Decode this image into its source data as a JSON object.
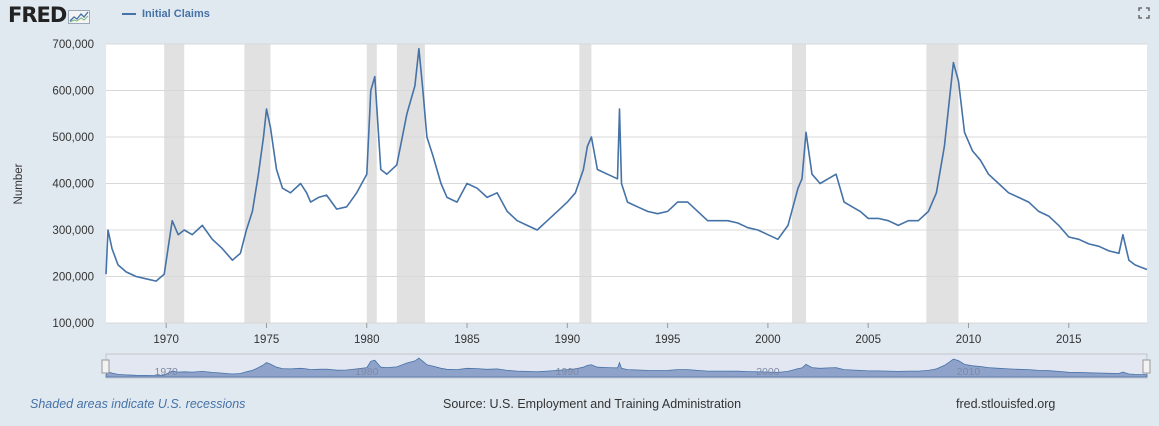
{
  "header": {
    "logo_text": "FRED",
    "legend_label": "Initial Claims"
  },
  "colors": {
    "series": "#4572a7",
    "recession": "#e1e1e1",
    "navigator_fill": "#8fa2c9",
    "grid": "#d8d8d8",
    "background": "#e1e9f0"
  },
  "footer": {
    "recession_note": "Shaded areas indicate U.S. recessions",
    "source": "Source: U.S. Employment and Training Administration",
    "site": "fred.stlouisfed.org"
  },
  "chart_data": {
    "type": "line",
    "title": "",
    "xlabel": "",
    "ylabel": "Number",
    "xlim": [
      1967.0,
      2018.9
    ],
    "ylim": [
      100000,
      700000
    ],
    "yticks": [
      100000,
      200000,
      300000,
      400000,
      500000,
      600000,
      700000
    ],
    "ytick_labels": [
      "100,000",
      "200,000",
      "300,000",
      "400,000",
      "500,000",
      "600,000",
      "700,000"
    ],
    "xticks": [
      1970,
      1975,
      1980,
      1985,
      1990,
      1995,
      2000,
      2005,
      2010,
      2015
    ],
    "xtick_labels": [
      "1970",
      "1975",
      "1980",
      "1985",
      "1990",
      "1995",
      "2000",
      "2005",
      "2010",
      "2015"
    ],
    "grid": true,
    "legend": "top-left",
    "recessions": [
      [
        1969.9,
        1970.9
      ],
      [
        1973.9,
        1975.2
      ],
      [
        1980.0,
        1980.5
      ],
      [
        1981.5,
        1982.9
      ],
      [
        1990.6,
        1991.2
      ],
      [
        2001.2,
        2001.9
      ],
      [
        2007.9,
        2009.5
      ]
    ],
    "navigator_labels": [
      "1970",
      "1980",
      "1990",
      "2000",
      "2010"
    ],
    "series": [
      {
        "name": "Initial Claims",
        "x": [
          1967.0,
          1967.1,
          1967.3,
          1967.6,
          1968.0,
          1968.5,
          1969.0,
          1969.5,
          1969.9,
          1970.3,
          1970.6,
          1970.9,
          1971.3,
          1971.8,
          1972.3,
          1972.8,
          1973.3,
          1973.7,
          1974.0,
          1974.3,
          1974.6,
          1974.85,
          1975.0,
          1975.2,
          1975.5,
          1975.8,
          1976.2,
          1976.7,
          1977.0,
          1977.2,
          1977.6,
          1978.0,
          1978.5,
          1979.0,
          1979.5,
          1980.0,
          1980.2,
          1980.4,
          1980.7,
          1981.0,
          1981.5,
          1982.0,
          1982.4,
          1982.6,
          1982.8,
          1983.0,
          1983.3,
          1983.7,
          1984.0,
          1984.5,
          1985.0,
          1985.5,
          1986.0,
          1986.5,
          1987.0,
          1987.5,
          1988.0,
          1988.5,
          1989.0,
          1989.5,
          1990.0,
          1990.4,
          1990.8,
          1991.0,
          1991.2,
          1991.5,
          1992.0,
          1992.5,
          1992.6,
          1992.7,
          1993.0,
          1993.5,
          1994.0,
          1994.5,
          1995.0,
          1995.5,
          1996.0,
          1996.5,
          1997.0,
          1997.5,
          1998.0,
          1998.5,
          1999.0,
          1999.5,
          2000.0,
          2000.5,
          2001.0,
          2001.5,
          2001.7,
          2001.9,
          2002.2,
          2002.6,
          2003.0,
          2003.4,
          2003.8,
          2004.2,
          2004.6,
          2005.0,
          2005.5,
          2006.0,
          2006.5,
          2007.0,
          2007.5,
          2008.0,
          2008.4,
          2008.8,
          2009.1,
          2009.25,
          2009.5,
          2009.8,
          2010.2,
          2010.6,
          2011.0,
          2011.5,
          2012.0,
          2012.5,
          2013.0,
          2013.5,
          2014.0,
          2014.5,
          2015.0,
          2015.5,
          2016.0,
          2016.5,
          2017.0,
          2017.5,
          2017.7,
          2018.0,
          2018.3,
          2018.6,
          2018.9
        ],
        "values": [
          205000,
          300000,
          260000,
          225000,
          210000,
          200000,
          195000,
          190000,
          205000,
          320000,
          290000,
          300000,
          290000,
          310000,
          280000,
          260000,
          235000,
          250000,
          300000,
          340000,
          420000,
          500000,
          560000,
          520000,
          430000,
          390000,
          380000,
          400000,
          380000,
          360000,
          370000,
          375000,
          345000,
          350000,
          380000,
          420000,
          600000,
          630000,
          430000,
          420000,
          440000,
          550000,
          610000,
          690000,
          600000,
          500000,
          460000,
          400000,
          370000,
          360000,
          400000,
          390000,
          370000,
          380000,
          340000,
          320000,
          310000,
          300000,
          320000,
          340000,
          360000,
          380000,
          430000,
          480000,
          500000,
          430000,
          420000,
          410000,
          560000,
          400000,
          360000,
          350000,
          340000,
          335000,
          340000,
          360000,
          360000,
          340000,
          320000,
          320000,
          320000,
          315000,
          305000,
          300000,
          290000,
          280000,
          310000,
          390000,
          410000,
          510000,
          420000,
          400000,
          410000,
          420000,
          360000,
          350000,
          340000,
          325000,
          325000,
          320000,
          310000,
          320000,
          320000,
          340000,
          380000,
          480000,
          600000,
          660000,
          620000,
          510000,
          470000,
          450000,
          420000,
          400000,
          380000,
          370000,
          360000,
          340000,
          330000,
          310000,
          285000,
          280000,
          270000,
          265000,
          255000,
          250000,
          290000,
          235000,
          225000,
          220000,
          215000
        ]
      }
    ]
  }
}
